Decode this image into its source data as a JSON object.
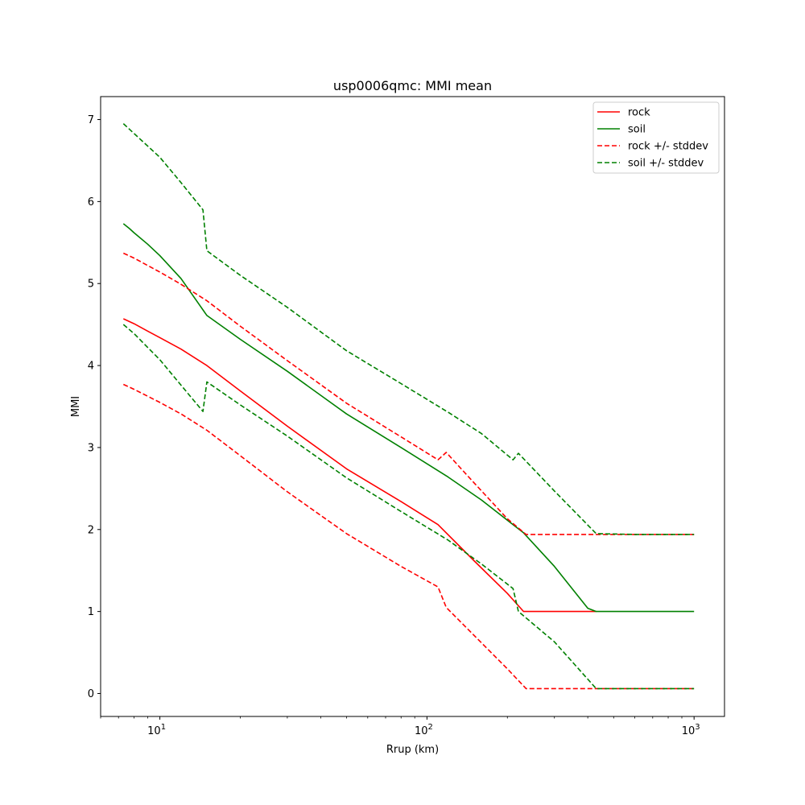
{
  "chart_data": {
    "type": "line",
    "title": "usp0006qmc: MMI mean",
    "xlabel": "Rrup (km)",
    "ylabel": "MMI",
    "xscale": "log",
    "xlim": [
      6,
      1300
    ],
    "ylim": [
      -0.28,
      7.28
    ],
    "xticks": [
      {
        "value": 10,
        "base": "10",
        "exp": "1"
      },
      {
        "value": 100,
        "base": "10",
        "exp": "2"
      },
      {
        "value": 1000,
        "base": "10",
        "exp": "3"
      }
    ],
    "yticks": [
      0,
      1,
      2,
      3,
      4,
      5,
      6,
      7
    ],
    "legend": {
      "placement": "top-right"
    },
    "grid": false,
    "series": [
      {
        "name": "rock",
        "color": "#ff0000",
        "dash": "solid",
        "points": [
          [
            7.3,
            4.57
          ],
          [
            8,
            4.51
          ],
          [
            9,
            4.42
          ],
          [
            10,
            4.34
          ],
          [
            12,
            4.2
          ],
          [
            15,
            4.0
          ],
          [
            20,
            3.69
          ],
          [
            30,
            3.26
          ],
          [
            50,
            2.74
          ],
          [
            80,
            2.34
          ],
          [
            110,
            2.06
          ],
          [
            150,
            1.62
          ],
          [
            200,
            1.22
          ],
          [
            230,
            1.0
          ],
          [
            300,
            1.0
          ],
          [
            430,
            1.0
          ]
        ]
      },
      {
        "name": "soil",
        "color": "#008000",
        "dash": "solid",
        "points": [
          [
            7.3,
            5.73
          ],
          [
            7.7,
            5.67
          ],
          [
            8,
            5.62
          ],
          [
            9,
            5.48
          ],
          [
            10,
            5.34
          ],
          [
            12,
            5.06
          ],
          [
            15,
            4.61
          ],
          [
            20,
            4.32
          ],
          [
            30,
            3.93
          ],
          [
            50,
            3.41
          ],
          [
            80,
            3.0
          ],
          [
            120,
            2.64
          ],
          [
            160,
            2.36
          ],
          [
            210,
            2.06
          ],
          [
            230,
            1.96
          ],
          [
            300,
            1.55
          ],
          [
            400,
            1.04
          ],
          [
            430,
            1.0
          ],
          [
            600,
            1.0
          ],
          [
            1000,
            1.0
          ]
        ]
      },
      {
        "name": "rock +/- stddev",
        "color": "#ff0000",
        "dash": "dashed",
        "points": [
          [
            7.3,
            5.37
          ],
          [
            8,
            5.31
          ],
          [
            10,
            5.14
          ],
          [
            12,
            4.99
          ],
          [
            15,
            4.79
          ],
          [
            20,
            4.48
          ],
          [
            30,
            4.06
          ],
          [
            50,
            3.54
          ],
          [
            80,
            3.13
          ],
          [
            110,
            2.85
          ],
          [
            118,
            2.94
          ],
          [
            150,
            2.57
          ],
          [
            200,
            2.13
          ],
          [
            235,
            1.94
          ],
          [
            300,
            1.94
          ],
          [
            500,
            1.94
          ],
          [
            1000,
            1.94
          ]
        ]
      },
      {
        "name": "rock +/- stddev",
        "color": "#ff0000",
        "dash": "dashed",
        "points": [
          [
            7.3,
            3.77
          ],
          [
            8,
            3.71
          ],
          [
            10,
            3.55
          ],
          [
            12,
            3.41
          ],
          [
            15,
            3.21
          ],
          [
            20,
            2.9
          ],
          [
            30,
            2.46
          ],
          [
            50,
            1.95
          ],
          [
            80,
            1.55
          ],
          [
            110,
            1.3
          ],
          [
            118,
            1.05
          ],
          [
            150,
            0.71
          ],
          [
            200,
            0.3
          ],
          [
            235,
            0.06
          ],
          [
            300,
            0.06
          ],
          [
            500,
            0.06
          ],
          [
            1000,
            0.06
          ]
        ]
      },
      {
        "name": "soil +/- stddev",
        "color": "#008000",
        "dash": "dashed",
        "points": [
          [
            7.3,
            6.95
          ],
          [
            8,
            6.83
          ],
          [
            10,
            6.54
          ],
          [
            12,
            6.23
          ],
          [
            14.5,
            5.9
          ],
          [
            15,
            5.4
          ],
          [
            20,
            5.1
          ],
          [
            30,
            4.71
          ],
          [
            50,
            4.18
          ],
          [
            80,
            3.78
          ],
          [
            120,
            3.43
          ],
          [
            160,
            3.17
          ],
          [
            210,
            2.85
          ],
          [
            220,
            2.93
          ],
          [
            300,
            2.47
          ],
          [
            430,
            1.95
          ],
          [
            600,
            1.94
          ],
          [
            1000,
            1.94
          ]
        ]
      },
      {
        "name": "soil +/- stddev",
        "color": "#008000",
        "dash": "dashed",
        "points": [
          [
            7.3,
            4.5
          ],
          [
            8,
            4.39
          ],
          [
            10,
            4.07
          ],
          [
            12,
            3.76
          ],
          [
            14.5,
            3.44
          ],
          [
            15,
            3.8
          ],
          [
            20,
            3.52
          ],
          [
            30,
            3.14
          ],
          [
            50,
            2.63
          ],
          [
            80,
            2.22
          ],
          [
            120,
            1.87
          ],
          [
            160,
            1.58
          ],
          [
            210,
            1.28
          ],
          [
            220,
            1.0
          ],
          [
            300,
            0.63
          ],
          [
            430,
            0.06
          ],
          [
            600,
            0.06
          ],
          [
            1000,
            0.06
          ]
        ]
      }
    ],
    "legend_entries": [
      {
        "label": "rock",
        "color": "#ff0000",
        "dash": "solid"
      },
      {
        "label": "soil",
        "color": "#008000",
        "dash": "solid"
      },
      {
        "label": "rock +/- stddev",
        "color": "#ff0000",
        "dash": "dashed"
      },
      {
        "label": "soil +/- stddev",
        "color": "#008000",
        "dash": "dashed"
      }
    ]
  }
}
